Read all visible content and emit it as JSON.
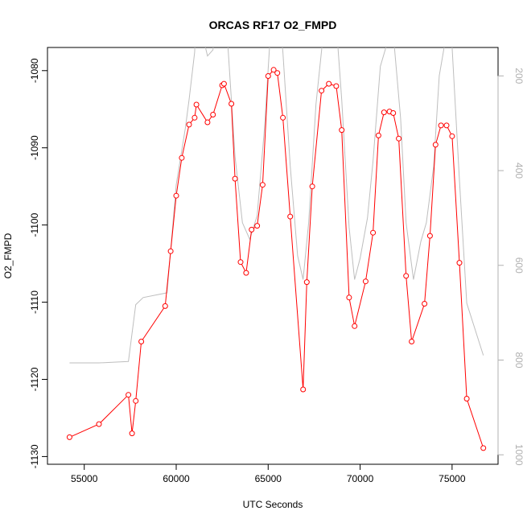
{
  "chart_data": {
    "type": "line",
    "title": "ORCAS RF17 O2_FMPD",
    "xlabel": "UTC Seconds",
    "ylabel": "O2_FMPD",
    "xlim": [
      53000,
      77500
    ],
    "ylim": [
      -1131,
      -1077
    ],
    "y2lim": [
      1020,
      140
    ],
    "x_ticks": [
      55000,
      60000,
      65000,
      70000,
      75000
    ],
    "y_ticks": [
      -1130,
      -1120,
      -1110,
      -1100,
      -1090,
      -1080
    ],
    "y2_ticks": [
      200,
      400,
      600,
      800,
      1000
    ],
    "grid": false,
    "legend": "none",
    "series": [
      {
        "axis": "left",
        "style": "line-with-circle-markers",
        "color": "#ff0000",
        "x": [
          54200,
          55800,
          57400,
          57600,
          57800,
          58100,
          59400,
          59700,
          60000,
          60300,
          60700,
          61000,
          61100,
          61700,
          62000,
          62500,
          62600,
          63000,
          63200,
          63500,
          63800,
          64100,
          64400,
          64700,
          65000,
          65300,
          65500,
          65800,
          66200,
          66900,
          67100,
          67400,
          67900,
          68300,
          68700,
          69000,
          69400,
          69700,
          70300,
          70700,
          71000,
          71300,
          71600,
          71800,
          72100,
          72500,
          72800,
          73500,
          73800,
          74100,
          74400,
          74700,
          75000,
          75400,
          75800,
          76700
        ],
        "y": [
          -1127.5,
          -1125.8,
          -1122.0,
          -1127.0,
          -1122.8,
          -1115.1,
          -1110.5,
          -1103.4,
          -1096.2,
          -1091.3,
          -1087.0,
          -1086.1,
          -1084.4,
          -1086.7,
          -1085.7,
          -1081.9,
          -1081.7,
          -1084.3,
          -1094.0,
          -1104.8,
          -1106.2,
          -1100.6,
          -1100.1,
          -1094.8,
          -1080.7,
          -1079.9,
          -1080.3,
          -1086.1,
          -1098.9,
          -1121.3,
          -1107.4,
          -1095.0,
          -1082.6,
          -1081.7,
          -1082.0,
          -1087.7,
          -1109.4,
          -1113.1,
          -1107.3,
          -1101.0,
          -1088.4,
          -1085.4,
          -1085.3,
          -1085.5,
          -1088.8,
          -1106.6,
          -1115.1,
          -1110.2,
          -1101.4,
          -1089.6,
          -1087.1,
          -1087.1,
          -1088.5,
          -1104.9,
          -1122.5,
          -1128.9
        ]
      },
      {
        "axis": "right",
        "style": "line",
        "color": "#bebebe",
        "x": [
          54200,
          55800,
          57400,
          57800,
          58200,
          59500,
          60000,
          60500,
          60700,
          61000,
          61100,
          61700,
          62000,
          62200,
          62500,
          62800,
          63200,
          63600,
          64000,
          64400,
          64800,
          65200,
          65500,
          65800,
          66200,
          66600,
          66900,
          67200,
          67600,
          68000,
          68300,
          68700,
          69000,
          69400,
          69700,
          70000,
          70400,
          70700,
          71100,
          71400,
          71800,
          72200,
          72500,
          72900,
          73300,
          73600,
          74000,
          74300,
          74700,
          75000,
          75400,
          75800,
          76700
        ],
        "y": [
          806,
          806,
          803,
          683,
          668,
          658,
          430,
          310,
          250,
          150,
          60,
          158,
          145,
          30,
          10,
          130,
          370,
          510,
          545,
          495,
          310,
          60,
          30,
          150,
          390,
          580,
          630,
          510,
          260,
          110,
          60,
          90,
          250,
          520,
          630,
          585,
          500,
          380,
          180,
          140,
          110,
          290,
          510,
          630,
          550,
          510,
          390,
          200,
          110,
          140,
          420,
          680,
          790
        ]
      }
    ]
  }
}
